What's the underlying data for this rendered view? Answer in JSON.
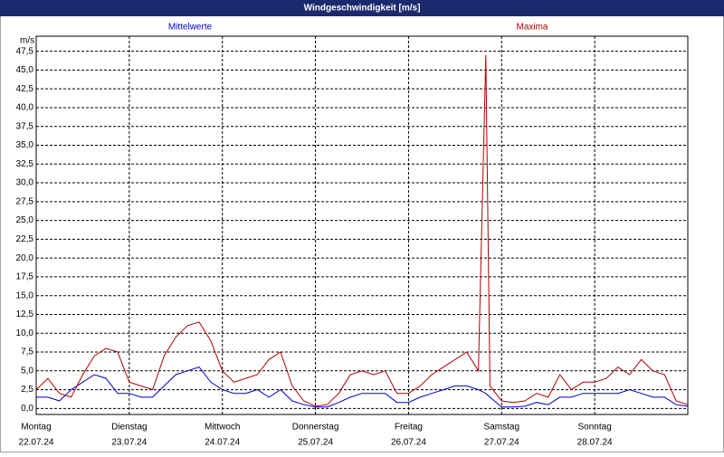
{
  "chart_data": {
    "type": "line",
    "title": "Windgeschwindigkeit [m/s]",
    "y_unit": "m/s",
    "xlim": [
      0,
      7
    ],
    "xticks": [
      {
        "value": 0,
        "label": "Montag",
        "date": "22.07.24"
      },
      {
        "value": 1,
        "label": "Dienstag",
        "date": "23.07.24"
      },
      {
        "value": 2,
        "label": "Mittwoch",
        "date": "24.07.24"
      },
      {
        "value": 3,
        "label": "Donnerstag",
        "date": "25.07.24"
      },
      {
        "value": 4,
        "label": "Freitag",
        "date": "26.07.24"
      },
      {
        "value": 5,
        "label": "Samstag",
        "date": "27.07.24"
      },
      {
        "value": 6,
        "label": "Sonntag",
        "date": "28.07.24"
      }
    ],
    "ylim": [
      -0.8,
      49.5
    ],
    "yticks": [
      {
        "value": 0,
        "label": "0,0"
      },
      {
        "value": 2.5,
        "label": "2,5"
      },
      {
        "value": 5,
        "label": "5,0"
      },
      {
        "value": 7.5,
        "label": "7,5"
      },
      {
        "value": 10,
        "label": "10,0"
      },
      {
        "value": 12.5,
        "label": "12,5"
      },
      {
        "value": 15,
        "label": "15,0"
      },
      {
        "value": 17.5,
        "label": "17,5"
      },
      {
        "value": 20,
        "label": "20,0"
      },
      {
        "value": 22.5,
        "label": "22,5"
      },
      {
        "value": 25,
        "label": "25,0"
      },
      {
        "value": 27.5,
        "label": "27,5"
      },
      {
        "value": 30,
        "label": "30,0"
      },
      {
        "value": 32.5,
        "label": "32,5"
      },
      {
        "value": 35,
        "label": "35,0"
      },
      {
        "value": 37.5,
        "label": "37,5"
      },
      {
        "value": 40,
        "label": "40,0"
      },
      {
        "value": 42.5,
        "label": "42,5"
      },
      {
        "value": 45,
        "label": "45,0"
      },
      {
        "value": 47.5,
        "label": "47,5"
      }
    ],
    "grid": true,
    "x": [
      0,
      0.125,
      0.25,
      0.375,
      0.5,
      0.625,
      0.75,
      0.875,
      1,
      1.125,
      1.25,
      1.375,
      1.5,
      1.625,
      1.75,
      1.875,
      2,
      2.125,
      2.25,
      2.375,
      2.5,
      2.625,
      2.75,
      2.875,
      3,
      3.125,
      3.25,
      3.375,
      3.5,
      3.625,
      3.75,
      3.875,
      4,
      4.125,
      4.25,
      4.375,
      4.5,
      4.625,
      4.75,
      4.83,
      4.875,
      5,
      5.125,
      5.25,
      5.375,
      5.5,
      5.625,
      5.75,
      5.875,
      6,
      6.125,
      6.25,
      6.375,
      6.5,
      6.625,
      6.75,
      6.875,
      7
    ],
    "series": [
      {
        "name": "Mittelwerte",
        "color": "#0000cc",
        "values": [
          1.5,
          1.5,
          1,
          2.5,
          3.5,
          4.5,
          4,
          2,
          2,
          1.5,
          1.5,
          3,
          4.5,
          5,
          5.5,
          3.5,
          2.5,
          2,
          2,
          2.5,
          1.5,
          2.5,
          1,
          0.5,
          0.2,
          0.2,
          0.8,
          1.5,
          2,
          2,
          2,
          0.8,
          0.8,
          1.5,
          2,
          2.5,
          3,
          3,
          2.5,
          2,
          1.5,
          0.2,
          0.2,
          0.3,
          0.8,
          0.5,
          1.5,
          1.5,
          2,
          2,
          2,
          2,
          2.5,
          2,
          1.5,
          1.5,
          0.5,
          0.3
        ]
      },
      {
        "name": "Maxima",
        "color": "#b00000",
        "values": [
          2.5,
          4,
          2,
          1.5,
          4.5,
          7,
          8,
          7.5,
          3.5,
          3,
          2.5,
          7,
          9.5,
          11,
          11.5,
          9,
          5,
          3.5,
          4,
          4.5,
          6.5,
          7.5,
          3,
          1,
          0.3,
          0.5,
          2,
          4.5,
          5,
          4.5,
          5,
          2,
          2,
          3,
          4.5,
          5.5,
          6.5,
          7.5,
          5,
          47,
          3,
          1,
          0.8,
          1,
          2,
          1.5,
          4.5,
          2.5,
          3.5,
          3.5,
          4,
          5.5,
          4.5,
          6.5,
          5,
          4.5,
          1,
          0.5
        ]
      }
    ]
  }
}
